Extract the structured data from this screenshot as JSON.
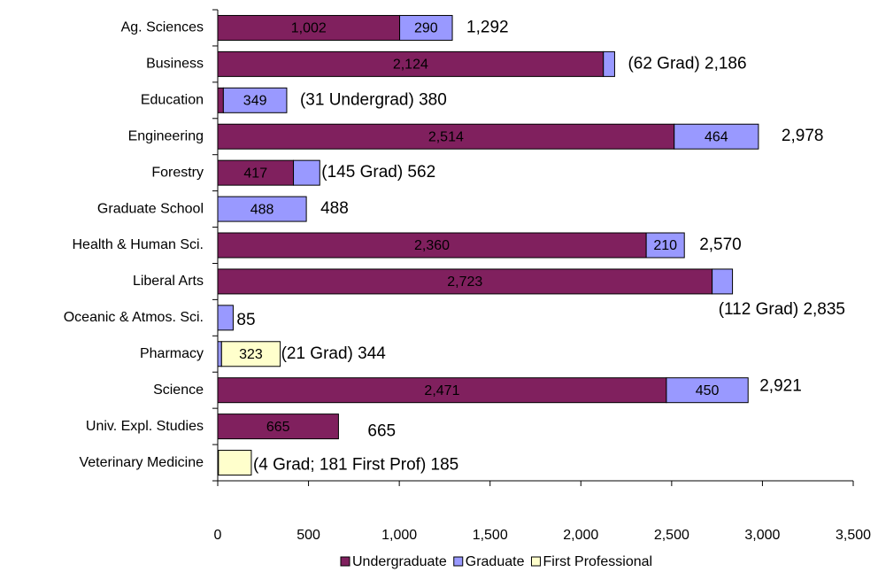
{
  "chart_data": {
    "type": "stacked_barh",
    "categories": [
      "Ag. Sciences",
      "Business",
      "Education",
      "Engineering",
      "Forestry",
      "Graduate School",
      "Health & Human Sci.",
      "Liberal Arts",
      "Oceanic & Atmos. Sci.",
      "Pharmacy",
      "Science",
      "Univ. Expl. Studies",
      "Veterinary Medicine"
    ],
    "series": [
      {
        "name": "Undergraduate",
        "color": "#80205e",
        "label_color": "#ffffff",
        "values": [
          1002,
          2124,
          31,
          2514,
          417,
          0,
          2360,
          2723,
          0,
          0,
          2471,
          665,
          0
        ],
        "value_labels": [
          "1,002",
          "2,124",
          null,
          "2,514",
          "417",
          null,
          "2,360",
          "2,723",
          null,
          null,
          "2,471",
          "665",
          null
        ]
      },
      {
        "name": "Graduate",
        "color": "#9999ff",
        "label_color": "#000000",
        "values": [
          290,
          62,
          349,
          464,
          145,
          488,
          210,
          112,
          85,
          21,
          450,
          0,
          4
        ],
        "value_labels": [
          "290",
          null,
          "349",
          "464",
          null,
          "488",
          "210",
          null,
          null,
          null,
          "450",
          null,
          null
        ]
      },
      {
        "name": "First Professional",
        "color": "#ffffcc",
        "label_color": "#000000",
        "values": [
          0,
          0,
          0,
          0,
          0,
          0,
          0,
          0,
          0,
          323,
          0,
          0,
          181
        ],
        "value_labels": [
          null,
          null,
          null,
          null,
          null,
          null,
          null,
          null,
          null,
          "323",
          null,
          null,
          null
        ]
      }
    ],
    "annotations": [
      "1,292",
      "(62 Grad) 2,186",
      "(31 Undergrad) 380",
      "2,978",
      "(145 Grad) 562",
      "488",
      "2,570",
      "(112 Grad) 2,835",
      "85",
      "(21 Grad) 344",
      "2,921",
      "665",
      "(4 Grad; 181 First Prof) 185"
    ],
    "xlim": [
      0,
      3500
    ],
    "xticks": [
      0,
      500,
      {
        "value": 1000,
        "label": "1,000"
      },
      {
        "value": 1500,
        "label": "1,500"
      },
      {
        "value": 2000,
        "label": "2,000"
      },
      {
        "value": 2500,
        "label": "2,500"
      },
      {
        "value": 3000,
        "label": "3,000"
      },
      {
        "value": 3500,
        "label": "3,500"
      }
    ],
    "legend": "bottom"
  }
}
